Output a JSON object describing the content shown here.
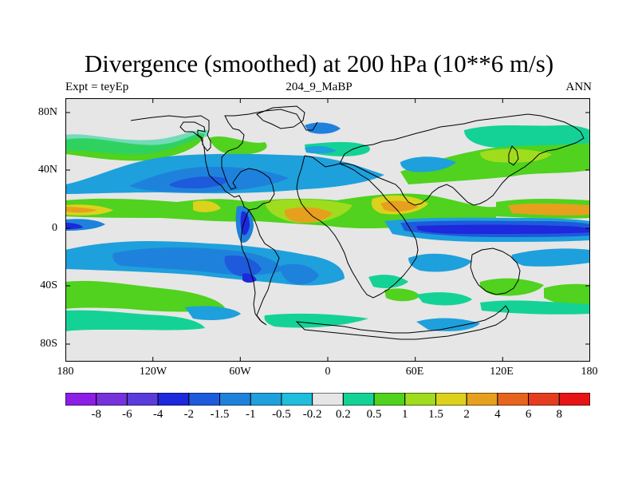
{
  "title": "Divergence (smoothed) at 200 hPa (10**6 m/s)",
  "subtitle_left": "Expt = teyEp",
  "subtitle_center": "204_9_MaBP",
  "subtitle_right": "ANN",
  "lat_labels": [
    "80N",
    "40N",
    "0",
    "40S",
    "80S"
  ],
  "lon_labels": [
    "180",
    "120W",
    "60W",
    "0",
    "60E",
    "120E",
    "180"
  ],
  "colorbar": {
    "labels": [
      "-8",
      "-6",
      "-4",
      "-2",
      "-1.5",
      "-1",
      "-0.5",
      "-0.2",
      "0.2",
      "0.5",
      "1",
      "1.5",
      "2",
      "4",
      "6",
      "8"
    ],
    "colors": [
      "#8c1ee6",
      "#7832dc",
      "#5a3cdc",
      "#1e28dc",
      "#1e5adc",
      "#1e82dc",
      "#1ea0dc",
      "#1ebedc",
      "#e6e6e6",
      "#14d296",
      "#50d21e",
      "#a0dc1e",
      "#dcd21e",
      "#e6a01e",
      "#e6641e",
      "#e63c1e",
      "#e61414"
    ]
  }
}
